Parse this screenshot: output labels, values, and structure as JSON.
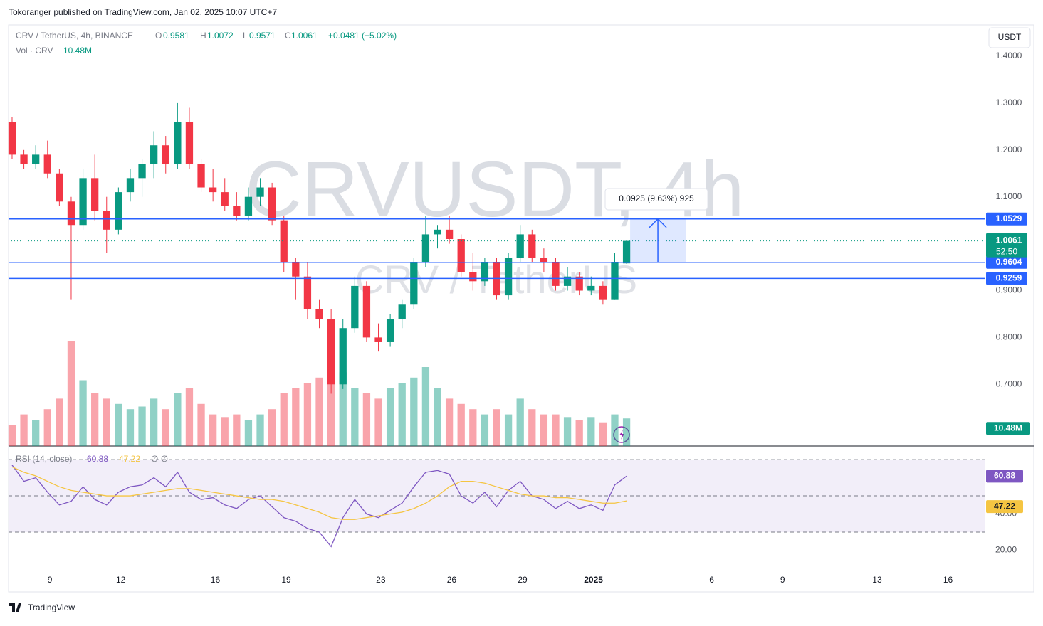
{
  "page": {
    "published": "Tokoranger published on TradingView.com, Jan 02, 2025 10:07 UTC+7",
    "brand": "TradingView",
    "currency_button": "USDT"
  },
  "chart_data": {
    "type": "candlestick",
    "header": {
      "symbol": "CRV / TetherUS, 4h, BINANCE",
      "o_label": "O",
      "o": "0.9581",
      "h_label": "H",
      "h": "1.0072",
      "l_label": "L",
      "l": "0.9571",
      "c_label": "C",
      "c": "1.0061",
      "change": "+0.0481 (+5.02%)"
    },
    "watermark": {
      "main": "CRVUSDT, 4h",
      "sub": "CRV / TetherUS"
    },
    "up_color": "#089981",
    "down_color": "#f23645",
    "xlim": [
      7.25,
      48.55
    ],
    "xticks": [
      9,
      12,
      16,
      19,
      23,
      26,
      29,
      {
        "value": 32,
        "label": "2025"
      },
      {
        "value": 37,
        "label": "6"
      },
      {
        "value": 40,
        "label": "9"
      },
      {
        "value": 44,
        "label": "13"
      },
      {
        "value": 47,
        "label": "16"
      }
    ],
    "ylim": [
      0.5684,
      1.4668
    ],
    "yticks": [
      {
        "value": 1.4,
        "label": "1.4000"
      },
      {
        "value": 1.3,
        "label": "1.3000"
      },
      {
        "value": 1.2,
        "label": "1.2000"
      },
      {
        "value": 1.1,
        "label": "1.1000"
      },
      {
        "value": 0.9,
        "label": "0.9000"
      },
      {
        "value": 0.8,
        "label": "0.8000"
      },
      {
        "value": 0.7,
        "label": "0.7000"
      }
    ],
    "x": [
      7.4,
      7.9,
      8.4,
      8.9,
      9.4,
      9.9,
      10.4,
      10.9,
      11.4,
      11.9,
      12.4,
      12.9,
      13.4,
      13.9,
      14.4,
      14.9,
      15.4,
      15.9,
      16.4,
      16.9,
      17.4,
      17.9,
      18.4,
      18.9,
      19.4,
      19.9,
      20.4,
      20.9,
      21.4,
      21.9,
      22.4,
      22.9,
      23.4,
      23.9,
      24.4,
      24.9,
      25.4,
      25.9,
      26.4,
      26.9,
      27.4,
      27.9,
      28.4,
      28.9,
      29.4,
      29.9,
      30.4,
      30.9,
      31.4,
      31.9,
      32.4,
      32.9,
      33.4
    ],
    "open": [
      1.26,
      1.19,
      1.17,
      1.19,
      1.15,
      1.09,
      1.04,
      1.14,
      1.07,
      1.03,
      1.11,
      1.14,
      1.17,
      1.21,
      1.17,
      1.26,
      1.17,
      1.12,
      1.11,
      1.08,
      1.06,
      1.1,
      1.12,
      1.05,
      0.96,
      0.93,
      0.86,
      0.84,
      0.7,
      0.82,
      0.91,
      0.8,
      0.79,
      0.84,
      0.87,
      0.96,
      1.02,
      1.03,
      1.01,
      0.94,
      0.92,
      0.96,
      0.89,
      0.97,
      1.02,
      0.97,
      0.96,
      0.91,
      0.93,
      0.9,
      0.91,
      0.88,
      0.9581
    ],
    "high": [
      1.27,
      1.2,
      1.21,
      1.22,
      1.16,
      1.1,
      1.16,
      1.19,
      1.1,
      1.12,
      1.16,
      1.18,
      1.24,
      1.23,
      1.3,
      1.29,
      1.18,
      1.16,
      1.14,
      1.11,
      1.12,
      1.14,
      1.13,
      1.06,
      0.97,
      0.96,
      0.88,
      0.86,
      0.84,
      0.93,
      0.92,
      0.83,
      0.85,
      0.88,
      0.97,
      1.06,
      1.04,
      1.06,
      1.02,
      0.98,
      0.97,
      0.97,
      0.98,
      1.04,
      1.03,
      0.99,
      0.97,
      0.95,
      0.94,
      0.93,
      0.92,
      0.98,
      1.0072
    ],
    "low": [
      1.18,
      1.16,
      1.16,
      1.14,
      1.08,
      0.88,
      1.03,
      1.05,
      0.98,
      1.02,
      1.09,
      1.1,
      1.14,
      1.15,
      1.16,
      1.16,
      1.11,
      1.09,
      1.07,
      1.05,
      1.05,
      1.08,
      1.04,
      0.94,
      0.88,
      0.84,
      0.82,
      0.68,
      0.69,
      0.81,
      0.79,
      0.77,
      0.78,
      0.82,
      0.86,
      0.95,
      0.99,
      1.0,
      0.93,
      0.9,
      0.91,
      0.88,
      0.88,
      0.96,
      0.96,
      0.94,
      0.9,
      0.9,
      0.89,
      0.89,
      0.87,
      0.88,
      0.9571
    ],
    "close": [
      1.19,
      1.17,
      1.19,
      1.15,
      1.09,
      1.04,
      1.14,
      1.07,
      1.03,
      1.11,
      1.14,
      1.17,
      1.21,
      1.17,
      1.26,
      1.17,
      1.12,
      1.11,
      1.08,
      1.06,
      1.1,
      1.12,
      1.05,
      0.96,
      0.93,
      0.86,
      0.84,
      0.7,
      0.82,
      0.91,
      0.8,
      0.79,
      0.84,
      0.87,
      0.96,
      1.02,
      1.03,
      1.01,
      0.94,
      0.92,
      0.96,
      0.89,
      0.97,
      1.02,
      0.97,
      0.96,
      0.91,
      0.93,
      0.9,
      0.91,
      0.88,
      0.96,
      1.0061
    ],
    "countdown": "52:50",
    "hlines": {
      "color": "#2962ff",
      "values": [
        1.0529,
        0.9604,
        0.9259
      ]
    },
    "measure": {
      "from": 0.9604,
      "to": 1.0529,
      "x": [
        33.55,
        35.9
      ],
      "label": "0.0925 (9.63%) 925"
    },
    "volume": {
      "name": "Vol · CRV",
      "current_label": "10.48M",
      "values": [
        8,
        12,
        10,
        14,
        18,
        40,
        25,
        20,
        18,
        16,
        14,
        15,
        18,
        14,
        20,
        22,
        16,
        12,
        11,
        12,
        10,
        12,
        14,
        20,
        22,
        24,
        26,
        35,
        28,
        22,
        20,
        18,
        22,
        24,
        26,
        30,
        22,
        18,
        16,
        14,
        12,
        14,
        12,
        18,
        14,
        12,
        12,
        11,
        10,
        11,
        9,
        12,
        10.48
      ]
    },
    "rsi": {
      "name": "RSI (14, close)",
      "extra": "∅ ∅",
      "ylim": [
        9.6,
        77.1
      ],
      "yticks": [
        {
          "value": 40,
          "label": "40.00"
        },
        {
          "value": 20,
          "label": "20.00"
        }
      ],
      "bands": [
        70,
        50,
        30
      ],
      "series": [
        {
          "name": "RSI",
          "color": "#7e57c2",
          "values": [
            67,
            58,
            60,
            52,
            45,
            47,
            55,
            48,
            45,
            52,
            55,
            56,
            60,
            55,
            63,
            52,
            48,
            49,
            45,
            43,
            48,
            50,
            44,
            38,
            36,
            32,
            30,
            22,
            38,
            48,
            40,
            38,
            42,
            46,
            55,
            63,
            64,
            62,
            50,
            46,
            52,
            44,
            53,
            58,
            50,
            48,
            43,
            47,
            43,
            45,
            42,
            56,
            60.88
          ]
        },
        {
          "name": "RSI-based MA",
          "color": "#f5c542",
          "values": [
            66,
            63,
            61,
            58,
            55,
            53,
            52,
            51,
            50,
            50,
            50,
            51,
            52,
            53,
            54,
            54,
            53,
            52,
            51,
            50,
            49,
            48,
            48,
            47,
            45,
            43,
            41,
            38,
            37,
            37,
            38,
            39,
            40,
            41,
            43,
            46,
            50,
            55,
            58,
            58,
            57,
            55,
            53,
            51,
            50,
            50,
            49,
            49,
            48,
            47,
            46,
            46,
            47.22
          ]
        }
      ]
    }
  }
}
